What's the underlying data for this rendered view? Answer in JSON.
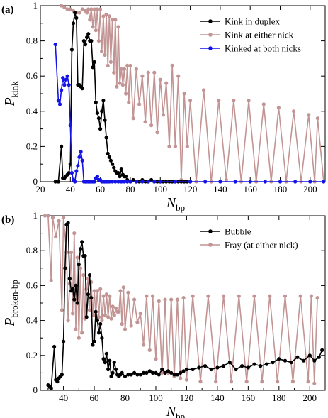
{
  "chart_data": [
    {
      "type": "line",
      "panel_label": "(a)",
      "xlabel": "N",
      "xlabel_sub": "bp",
      "ylabel": "P",
      "ylabel_sub": "kink",
      "xlim": [
        20,
        210
      ],
      "ylim": [
        0,
        1
      ],
      "xticks": [
        "20",
        "40",
        "60",
        "80",
        "100",
        "120",
        "140",
        "160",
        "180",
        "200"
      ],
      "yticks": [
        "0",
        "0.2",
        "0.4",
        "0.6",
        "0.8",
        "1"
      ],
      "legend_position": "top-right",
      "series": [
        {
          "name": "Kink in duplex",
          "color": "#000000",
          "x": [
            30,
            32,
            34,
            35,
            36,
            37,
            38,
            39,
            40,
            41,
            42,
            43,
            44,
            45,
            46,
            47,
            48,
            49,
            50,
            51,
            52,
            53,
            54,
            55,
            56,
            57,
            58,
            59,
            60,
            61,
            62,
            63,
            64,
            65,
            66,
            67,
            68,
            69,
            70,
            71,
            72,
            73,
            74,
            75,
            76,
            77,
            78,
            80,
            82,
            84,
            86,
            88,
            90,
            92,
            94,
            96,
            98,
            100,
            102,
            104,
            106,
            108,
            110,
            112,
            114,
            116,
            118,
            120
          ],
          "y": [
            0.0,
            0.0,
            0.2,
            0.02,
            0.02,
            0.03,
            0.04,
            0.05,
            0.1,
            0.75,
            0.9,
            0.96,
            0.93,
            0.55,
            0.55,
            0.54,
            0.53,
            0.8,
            0.78,
            0.82,
            0.84,
            0.8,
            0.8,
            0.65,
            0.68,
            0.45,
            0.39,
            0.36,
            0.3,
            0.4,
            0.46,
            0.35,
            0.25,
            0.16,
            0.14,
            0.12,
            0.1,
            0.08,
            0.06,
            0.05,
            0.05,
            0.03,
            0.07,
            0.04,
            0.03,
            0.03,
            0.01,
            0.0,
            0.01,
            0.0,
            0.0,
            0.01,
            0.0,
            0.0,
            0.01,
            0.0,
            0.0,
            0.0,
            0.0,
            0.0,
            0.0,
            0.0,
            0.0,
            0.0,
            0.0,
            0.0,
            0.0,
            0.0
          ]
        },
        {
          "name": "Kink at either nick",
          "color": "#c29494",
          "x": [
            34,
            36,
            38,
            40,
            42,
            44,
            46,
            48,
            50,
            51,
            52,
            53,
            54,
            55,
            56,
            57,
            58,
            59,
            60,
            61,
            62,
            63,
            64,
            65,
            66,
            67,
            68,
            69,
            70,
            71,
            72,
            73,
            74,
            75,
            76,
            77,
            78,
            79,
            80,
            82,
            84,
            86,
            88,
            90,
            92,
            94,
            96,
            98,
            100,
            102,
            104,
            106,
            108,
            110,
            112,
            114,
            116,
            118,
            120,
            124,
            129,
            134,
            139,
            144,
            149,
            154,
            159,
            164,
            169,
            174,
            179,
            184,
            189,
            194,
            199,
            203,
            205,
            209
          ],
          "y": [
            1.0,
            0.99,
            0.98,
            0.98,
            0.97,
            0.96,
            0.96,
            0.98,
            0.97,
            0.96,
            0.98,
            0.92,
            0.98,
            0.88,
            0.98,
            0.86,
            0.98,
            0.8,
            0.98,
            0.74,
            0.94,
            0.72,
            0.95,
            0.66,
            0.94,
            0.68,
            0.92,
            0.62,
            0.92,
            0.54,
            0.88,
            0.56,
            0.64,
            0.55,
            0.64,
            0.5,
            0.66,
            0.45,
            0.66,
            0.36,
            0.64,
            0.44,
            0.6,
            0.34,
            0.62,
            0.32,
            0.62,
            0.28,
            0.58,
            0.38,
            0.56,
            0.2,
            0.66,
            0.2,
            0.6,
            0.01,
            0.5,
            0.2,
            0.46,
            0.0,
            0.52,
            0.0,
            0.46,
            0.01,
            0.46,
            0.0,
            0.46,
            0.0,
            0.44,
            0.0,
            0.42,
            0.0,
            0.4,
            0.0,
            0.38,
            0.0,
            0.36,
            0.0
          ]
        },
        {
          "name": "Kinked at both nicks",
          "color": "#1414e6",
          "x": [
            30,
            32,
            33,
            34,
            35,
            36,
            37,
            38,
            39,
            40,
            41,
            42,
            43,
            44,
            45,
            46,
            47,
            48,
            49,
            50,
            51,
            52,
            53,
            54,
            55,
            56,
            57,
            58,
            59,
            60,
            61,
            62,
            63,
            64,
            65,
            66,
            68,
            70,
            72,
            74,
            76,
            78,
            80,
            84,
            88,
            92,
            96,
            100,
            110,
            120,
            130,
            140,
            150,
            160,
            170,
            180,
            190,
            200,
            209
          ],
          "y": [
            0.78,
            0.46,
            0.44,
            0.52,
            0.59,
            0.55,
            0.58,
            0.6,
            0.55,
            0.32,
            0.05,
            0.01,
            0.0,
            0.06,
            0.09,
            0.14,
            0.17,
            0.12,
            0.0,
            0.0,
            0.0,
            0.0,
            0.0,
            0.0,
            0.0,
            0.0,
            0.02,
            0.03,
            0.01,
            0.01,
            0.0,
            0.0,
            0.0,
            0.0,
            0.0,
            0.0,
            0.0,
            0.0,
            0.0,
            0.0,
            0.0,
            0.0,
            0.0,
            0.0,
            0.0,
            0.0,
            0.0,
            0.0,
            0.0,
            0.0,
            0.0,
            0.0,
            0.0,
            0.0,
            0.0,
            0.0,
            0.0,
            0.0,
            0.0
          ]
        }
      ]
    },
    {
      "type": "line",
      "panel_label": "(b)",
      "xlabel": "N",
      "xlabel_sub": "bp",
      "ylabel": "P",
      "ylabel_sub": "broken-bp",
      "xlim": [
        25,
        210
      ],
      "ylim": [
        0,
        1
      ],
      "xticks": [
        "40",
        "60",
        "80",
        "100",
        "120",
        "140",
        "160",
        "180",
        "200"
      ],
      "yticks": [
        "0",
        "0.2",
        "0.4",
        "0.6",
        "0.8",
        "1"
      ],
      "legend_position": "top-right",
      "series": [
        {
          "name": "Bubble",
          "color": "#000000",
          "x": [
            30,
            31,
            32,
            34,
            35,
            36,
            37,
            38,
            39,
            40,
            41,
            42,
            43,
            44,
            45,
            46,
            47,
            48,
            49,
            50,
            51,
            52,
            53,
            54,
            55,
            56,
            57,
            58,
            59,
            60,
            61,
            62,
            63,
            64,
            65,
            66,
            67,
            68,
            69,
            70,
            71,
            72,
            73,
            74,
            75,
            76,
            77,
            78,
            80,
            82,
            84,
            86,
            88,
            90,
            92,
            94,
            96,
            98,
            100,
            102,
            104,
            106,
            108,
            110,
            112,
            114,
            116,
            118,
            120,
            124,
            128,
            132,
            136,
            140,
            144,
            148,
            152,
            156,
            160,
            164,
            168,
            172,
            176,
            180,
            184,
            188,
            192,
            196,
            200,
            203,
            206,
            208
          ],
          "y": [
            0.03,
            0.02,
            0.01,
            0.25,
            0.06,
            0.05,
            0.07,
            0.08,
            0.09,
            0.28,
            0.7,
            0.95,
            0.96,
            0.64,
            0.57,
            0.58,
            0.52,
            0.6,
            0.5,
            0.72,
            0.81,
            0.85,
            0.77,
            0.77,
            0.42,
            0.55,
            0.66,
            0.53,
            0.26,
            0.28,
            0.45,
            0.4,
            0.33,
            0.38,
            0.3,
            0.18,
            0.16,
            0.21,
            0.12,
            0.17,
            0.08,
            0.1,
            0.16,
            0.12,
            0.09,
            0.08,
            0.09,
            0.1,
            0.08,
            0.09,
            0.09,
            0.1,
            0.09,
            0.09,
            0.1,
            0.1,
            0.11,
            0.1,
            0.1,
            0.09,
            0.12,
            0.1,
            0.11,
            0.1,
            0.09,
            0.09,
            0.1,
            0.11,
            0.12,
            0.12,
            0.13,
            0.14,
            0.12,
            0.13,
            0.14,
            0.16,
            0.12,
            0.14,
            0.13,
            0.15,
            0.14,
            0.15,
            0.16,
            0.18,
            0.17,
            0.16,
            0.19,
            0.17,
            0.2,
            0.17,
            0.19,
            0.23
          ]
        },
        {
          "name": "Fray (at either nick)",
          "color": "#c29494",
          "x": [
            28,
            30,
            32,
            33,
            35,
            37,
            39,
            40,
            42,
            43,
            44,
            45,
            46,
            47,
            48,
            49,
            50,
            51,
            52,
            53,
            54,
            55,
            56,
            57,
            58,
            59,
            60,
            61,
            62,
            63,
            64,
            65,
            66,
            67,
            68,
            69,
            70,
            71,
            72,
            73,
            74,
            75,
            76,
            77,
            78,
            79,
            80,
            82,
            84,
            86,
            88,
            90,
            92,
            94,
            96,
            98,
            100,
            102,
            104,
            106,
            108,
            110,
            112,
            114,
            116,
            118,
            120,
            124,
            129,
            134,
            139,
            144,
            149,
            154,
            159,
            164,
            169,
            174,
            179,
            184,
            189,
            194,
            199,
            201,
            203,
            205
          ],
          "y": [
            1.0,
            1.0,
            0.63,
            0.99,
            0.88,
            0.97,
            0.46,
            0.99,
            0.79,
            0.4,
            0.61,
            0.79,
            0.44,
            0.9,
            0.35,
            0.76,
            0.3,
            0.7,
            0.33,
            0.66,
            0.41,
            0.58,
            0.64,
            0.46,
            0.62,
            0.43,
            0.57,
            0.43,
            0.57,
            0.42,
            0.58,
            0.4,
            0.54,
            0.43,
            0.55,
            0.42,
            0.54,
            0.41,
            0.48,
            0.43,
            0.47,
            0.45,
            0.45,
            0.57,
            0.38,
            0.59,
            0.35,
            0.56,
            0.37,
            0.52,
            0.39,
            0.44,
            0.26,
            0.54,
            0.23,
            0.54,
            0.18,
            0.51,
            0.1,
            0.52,
            0.1,
            0.52,
            0.08,
            0.52,
            0.07,
            0.53,
            0.06,
            0.54,
            0.05,
            0.54,
            0.05,
            0.54,
            0.05,
            0.54,
            0.05,
            0.54,
            0.05,
            0.54,
            0.05,
            0.54,
            0.05,
            0.54,
            0.05,
            0.54,
            0.04,
            0.53
          ]
        }
      ]
    }
  ]
}
